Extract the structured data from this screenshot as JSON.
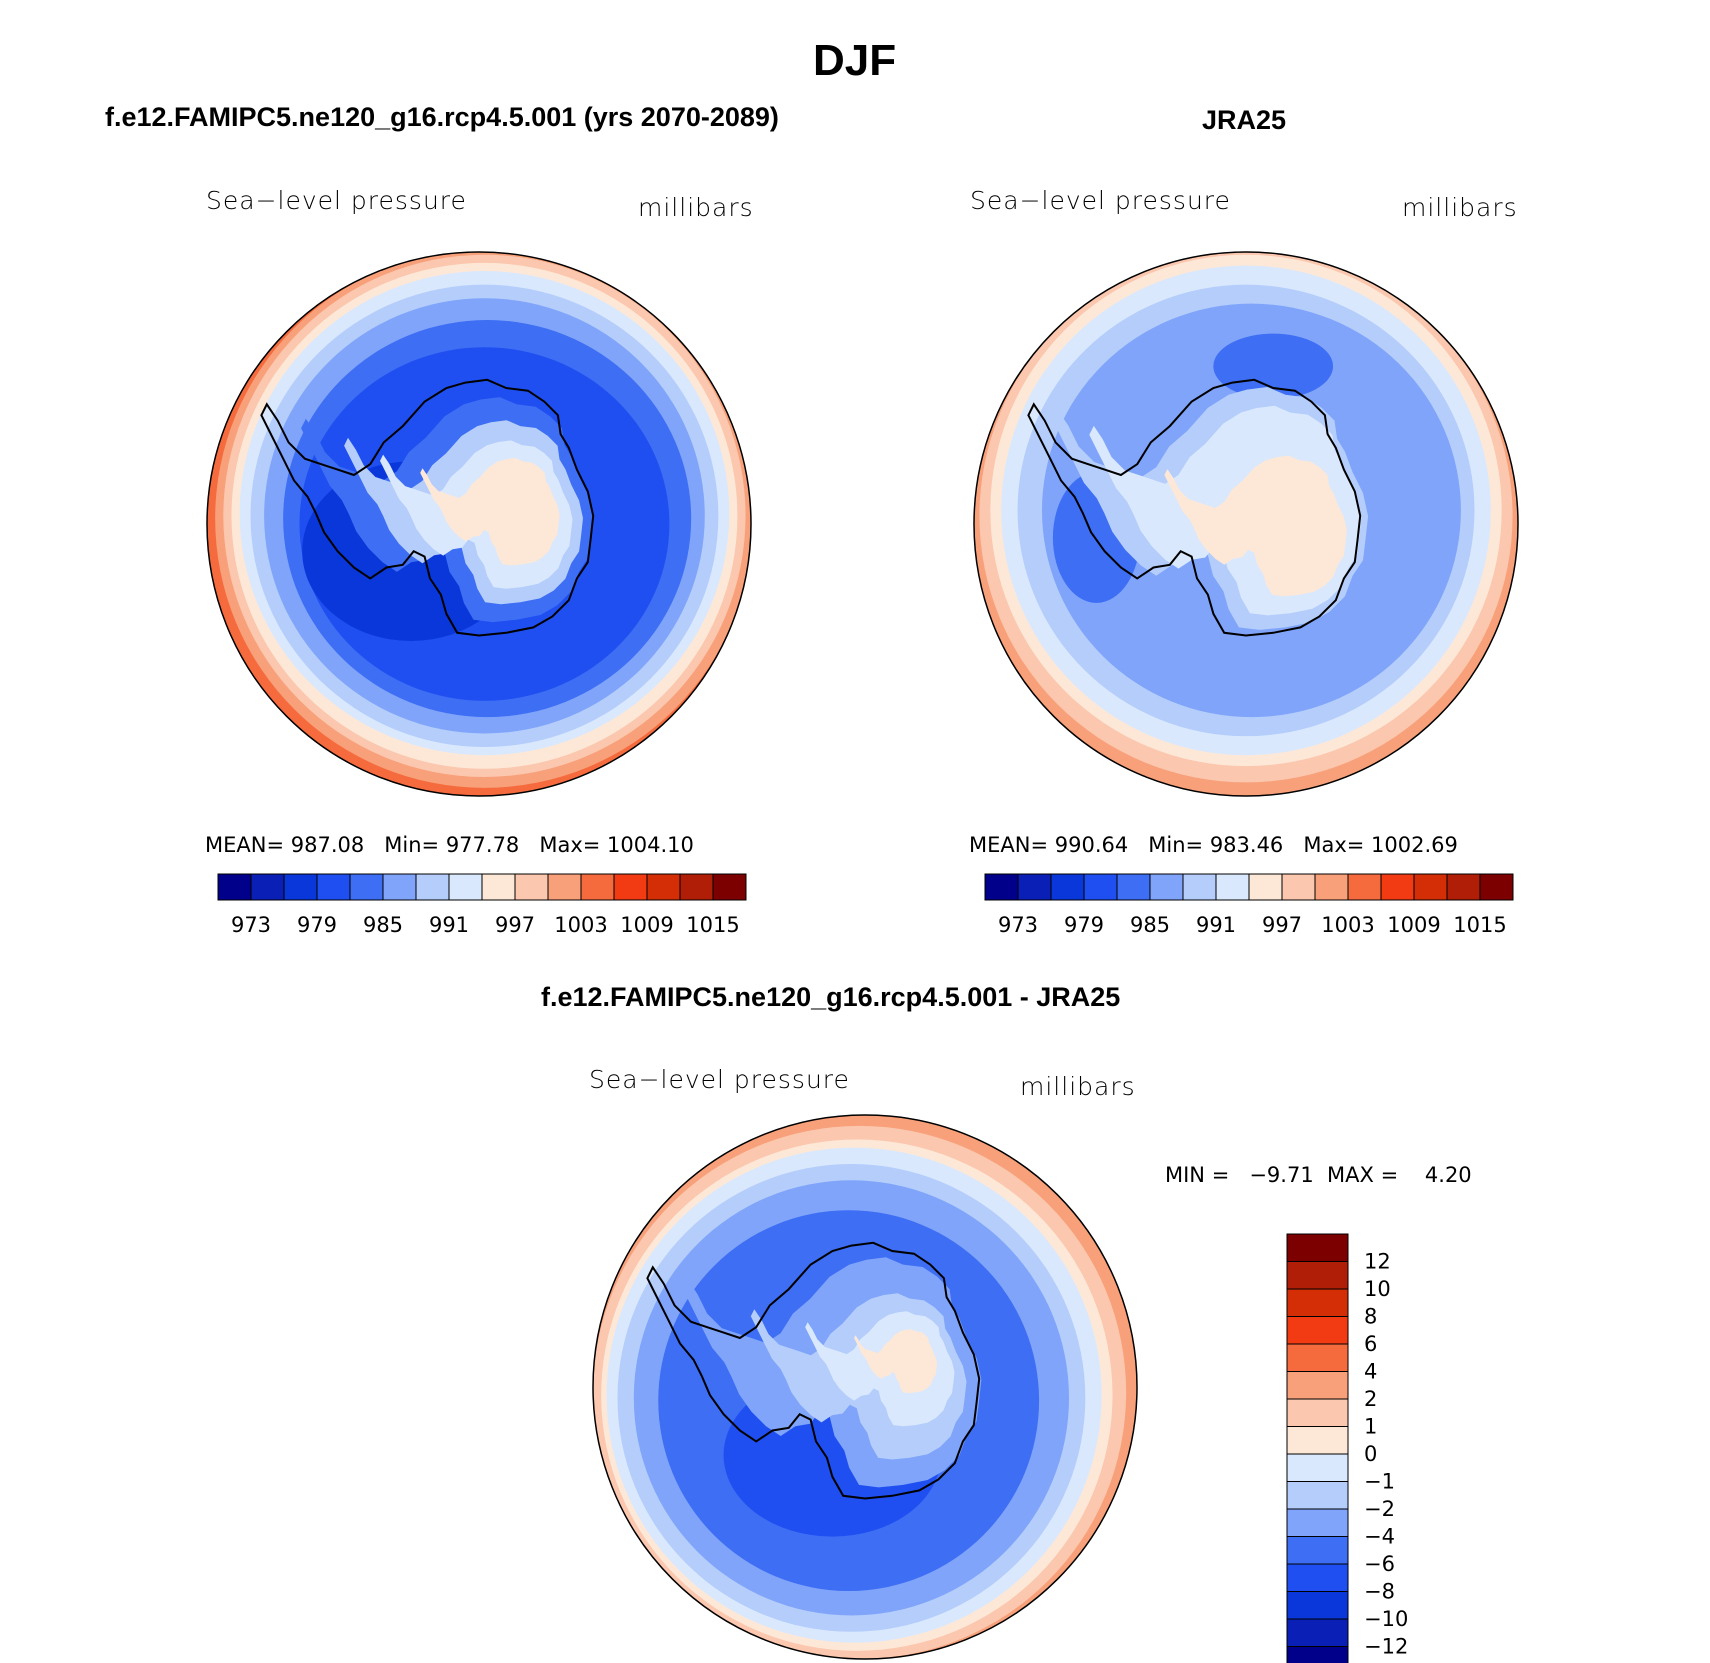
{
  "title": "DJF",
  "panels": [
    {
      "id": "model",
      "heading": "f.e12.FAMIPC5.ne120_g16.rcp4.5.001 (yrs 2070-2089)",
      "variable": "Sea−level pressure",
      "units": "millibars",
      "stats": {
        "mean_label": "MEAN=",
        "mean": "987.08",
        "min_label": "Min=",
        "min": "977.78",
        "max_label": "Max=",
        "max": "1004.10"
      }
    },
    {
      "id": "obs",
      "heading": "JRA25",
      "variable": "Sea−level pressure",
      "units": "millibars",
      "stats": {
        "mean_label": "MEAN=",
        "mean": "990.64",
        "min_label": "Min=",
        "min": "983.46",
        "max_label": "Max=",
        "max": "1002.69"
      }
    },
    {
      "id": "diff",
      "heading": "f.e12.FAMIPC5.ne120_g16.rcp4.5.001 - JRA25",
      "variable": "Sea−level pressure",
      "units": "millibars",
      "stats": {
        "min_label": "MIN =",
        "min": "−9.71",
        "max_label": "MAX =",
        "max": "4.20"
      }
    }
  ],
  "colorbar_abs": {
    "colors": [
      "#00008b",
      "#0a1fb5",
      "#0a37d9",
      "#1f4ff0",
      "#3d6ef4",
      "#7fa4fa",
      "#b4cdfb",
      "#d9e8fc",
      "#fde8d8",
      "#fbc7ae",
      "#f7a07a",
      "#f56b3e",
      "#f23b13",
      "#d42e06",
      "#b01e07",
      "#7d0000"
    ],
    "tick_labels": [
      "973",
      "979",
      "985",
      "991",
      "997",
      "1003",
      "1009",
      "1015"
    ]
  },
  "colorbar_diff": {
    "colors": [
      "#00008b",
      "#0a1fb5",
      "#0a37d9",
      "#1f4ff0",
      "#3d6ef4",
      "#7fa4fa",
      "#b4cdfb",
      "#d9e8fc",
      "#fde8d8",
      "#fbc7ae",
      "#f7a07a",
      "#f56b3e",
      "#f23b13",
      "#d42e06",
      "#b01e07",
      "#7d0000"
    ],
    "tick_labels": [
      "12",
      "10",
      "8",
      "6",
      "4",
      "2",
      "1",
      "0",
      "−1",
      "−2",
      "−4",
      "−6",
      "−8",
      "−10",
      "−12"
    ]
  }
}
